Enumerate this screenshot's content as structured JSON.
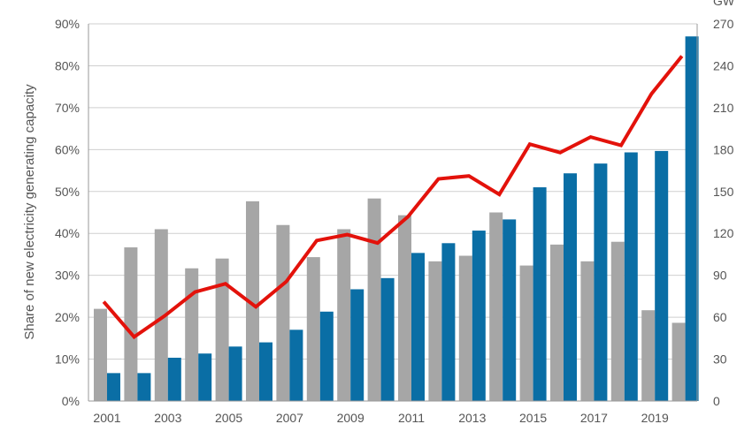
{
  "chart_data": {
    "type": "bar",
    "x": [
      2001,
      2002,
      2003,
      2004,
      2005,
      2006,
      2007,
      2008,
      2009,
      2010,
      2011,
      2012,
      2013,
      2014,
      2015,
      2016,
      2017,
      2018,
      2019,
      2020
    ],
    "x_tick_labels": [
      "2001",
      "2003",
      "2005",
      "2007",
      "2009",
      "2011",
      "2013",
      "2015",
      "2017",
      "2019"
    ],
    "series": [
      {
        "kind": "bar",
        "axis": "right",
        "color": "#a6a6a6",
        "values": [
          66,
          110,
          123,
          95,
          102,
          143,
          126,
          103,
          123,
          145,
          133,
          100,
          104,
          135,
          97,
          112,
          100,
          114,
          65,
          56
        ]
      },
      {
        "kind": "bar",
        "axis": "right",
        "color": "#0a6ea5",
        "values": [
          20,
          20,
          31,
          34,
          39,
          42,
          51,
          64,
          80,
          88,
          106,
          113,
          122,
          130,
          153,
          163,
          170,
          178,
          179,
          261
        ]
      },
      {
        "kind": "line",
        "axis": "left",
        "color": "#e3120b",
        "values": [
          0.237,
          0.153,
          0.203,
          0.26,
          0.28,
          0.225,
          0.285,
          0.383,
          0.397,
          0.377,
          0.44,
          0.53,
          0.537,
          0.493,
          0.613,
          0.593,
          0.63,
          0.61,
          0.733,
          0.823
        ]
      }
    ],
    "ylabel": "Share of new electricity generating capacity",
    "y2label": "GW",
    "ylim": [
      0,
      0.9
    ],
    "y2lim": [
      0,
      270
    ],
    "y_tick_labels": [
      "0%",
      "10%",
      "20%",
      "30%",
      "40%",
      "50%",
      "60%",
      "70%",
      "80%",
      "90%"
    ],
    "y2_tick_labels": [
      "0",
      "30",
      "60",
      "90",
      "120",
      "150",
      "180",
      "210",
      "240",
      "270"
    ],
    "grid": true
  }
}
